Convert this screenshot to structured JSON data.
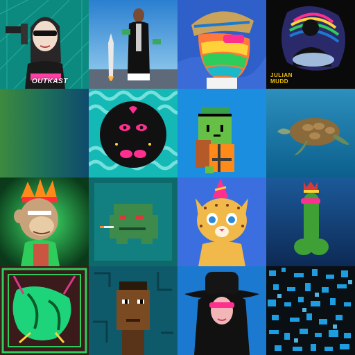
{
  "gallery": {
    "tiles": [
      {
        "name": "outkast-avatar",
        "caption": "OUTKAST"
      },
      {
        "name": "man-rocket-launch",
        "caption": ""
      },
      {
        "name": "rainbow-fish-hat",
        "caption": ""
      },
      {
        "name": "julian-mudd-cover",
        "caption": "JULIAN\nMUDD"
      },
      {
        "name": "gradient-green-blue",
        "caption": ""
      },
      {
        "name": "black-blob-creature",
        "caption": ""
      },
      {
        "name": "pixel-green-turtle",
        "caption": ""
      },
      {
        "name": "sea-turtle-photo",
        "caption": ""
      },
      {
        "name": "ape-headdress",
        "caption": ""
      },
      {
        "name": "pixel-green-toad",
        "caption": ""
      },
      {
        "name": "party-cheetah",
        "caption": ""
      },
      {
        "name": "green-crowned-character",
        "caption": ""
      },
      {
        "name": "neon-green-figure",
        "caption": ""
      },
      {
        "name": "pixel-man-portrait",
        "caption": ""
      },
      {
        "name": "cowboy-hat-character",
        "caption": ""
      },
      {
        "name": "blue-pixel-noise",
        "caption": ""
      }
    ]
  },
  "colors": {
    "accent_teal": "#1bb8c9",
    "accent_blue": "#1c79d0",
    "accent_pink": "#ff2f8f",
    "accent_green": "#2ecc5a"
  }
}
